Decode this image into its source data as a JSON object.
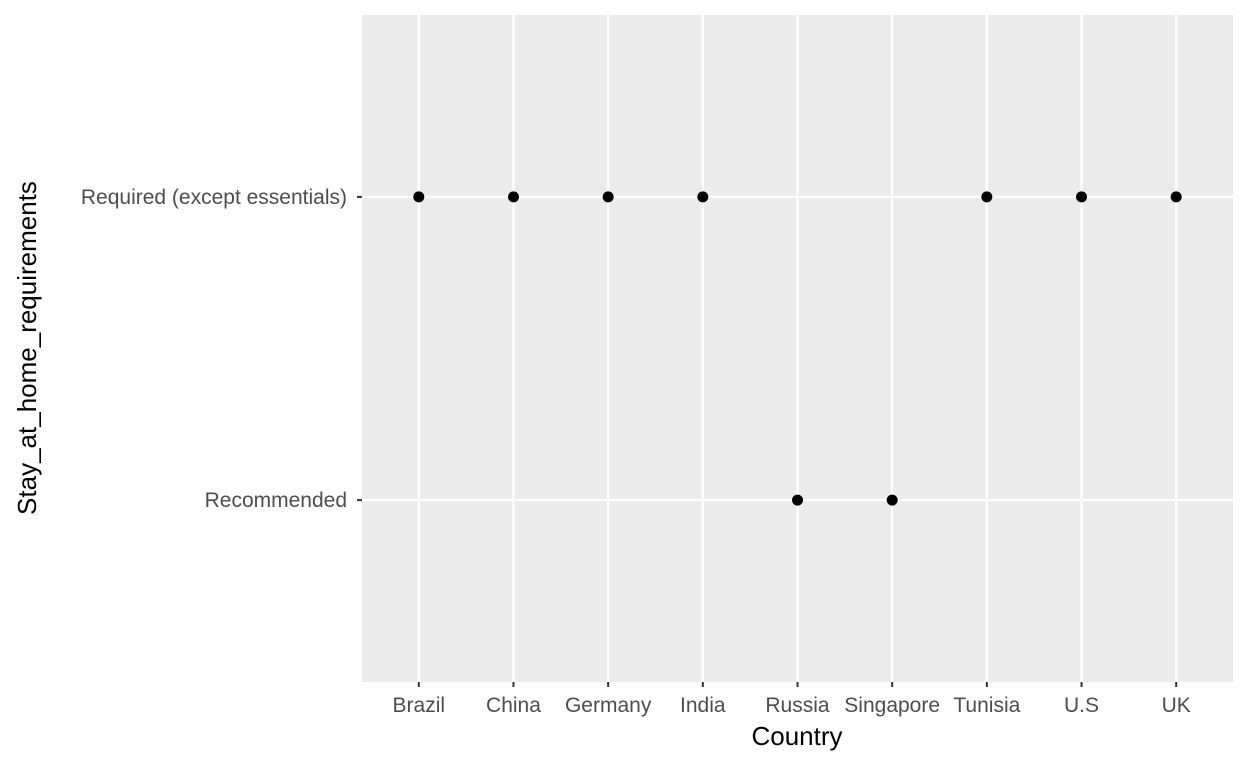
{
  "chart_data": {
    "type": "scatter",
    "title": "",
    "xlabel": "Country",
    "ylabel": "Stay_at_home_requirements",
    "x_categories": [
      "Brazil",
      "China",
      "Germany",
      "India",
      "Russia",
      "Singapore",
      "Tunisia",
      "U.S",
      "UK"
    ],
    "y_categories": [
      "Recommended",
      "Required (except essentials)"
    ],
    "points": [
      {
        "x": "Brazil",
        "y": "Required (except essentials)"
      },
      {
        "x": "China",
        "y": "Required (except essentials)"
      },
      {
        "x": "Germany",
        "y": "Required (except essentials)"
      },
      {
        "x": "India",
        "y": "Required (except essentials)"
      },
      {
        "x": "Russia",
        "y": "Recommended"
      },
      {
        "x": "Singapore",
        "y": "Recommended"
      },
      {
        "x": "Tunisia",
        "y": "Required (except essentials)"
      },
      {
        "x": "U.S",
        "y": "Required (except essentials)"
      },
      {
        "x": "UK",
        "y": "Required (except essentials)"
      }
    ],
    "grid": true,
    "legend": "none",
    "colors": {
      "panel_background": "#ebebeb",
      "grid_line": "#ffffff",
      "point": "#000000",
      "tick_text": "#4d4d4d",
      "tick_mark": "#333333"
    }
  }
}
